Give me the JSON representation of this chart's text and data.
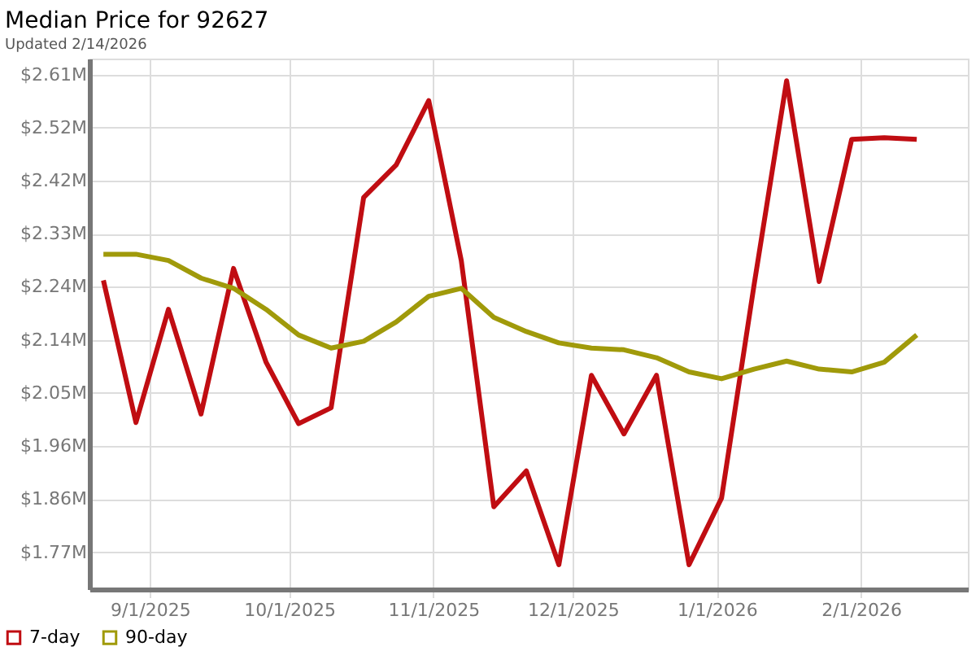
{
  "chart_data": {
    "type": "line",
    "title": "Median Price for 92627",
    "subtitle": "Updated 2/14/2026",
    "x": [
      "2025-08-22",
      "2025-08-29",
      "2025-09-05",
      "2025-09-12",
      "2025-09-19",
      "2025-09-26",
      "2025-10-03",
      "2025-10-10",
      "2025-10-17",
      "2025-10-24",
      "2025-10-31",
      "2025-11-07",
      "2025-11-14",
      "2025-11-21",
      "2025-11-28",
      "2025-12-05",
      "2025-12-12",
      "2025-12-19",
      "2025-12-26",
      "2026-01-02",
      "2026-01-09",
      "2026-01-16",
      "2026-01-23",
      "2026-01-30",
      "2026-02-06",
      "2026-02-13"
    ],
    "series": [
      {
        "name": "7-day",
        "color": "#c00d12",
        "values": [
          2.248,
          1.998,
          2.197,
          2.013,
          2.269,
          2.104,
          1.996,
          2.024,
          2.394,
          2.451,
          2.564,
          2.283,
          1.85,
          1.913,
          1.748,
          2.081,
          1.978,
          2.081,
          1.748,
          1.865,
          2.24,
          2.599,
          2.246,
          2.496,
          2.499,
          2.496
        ]
      },
      {
        "name": "90-day",
        "color": "#a09a0a",
        "values": [
          2.294,
          2.294,
          2.283,
          2.252,
          2.234,
          2.197,
          2.152,
          2.129,
          2.141,
          2.175,
          2.22,
          2.234,
          2.183,
          2.158,
          2.138,
          2.129,
          2.126,
          2.112,
          2.087,
          2.075,
          2.092,
          2.106,
          2.092,
          2.087,
          2.104,
          2.152
        ]
      }
    ],
    "xlim": [
      "2025-08-19",
      "2026-02-24"
    ],
    "xticks": [
      {
        "value": "2025-09-01",
        "label": "9/1/2025"
      },
      {
        "value": "2025-10-01",
        "label": "10/1/2025"
      },
      {
        "value": "2025-11-01",
        "label": "11/1/2025"
      },
      {
        "value": "2025-12-01",
        "label": "12/1/2025"
      },
      {
        "value": "2026-01-01",
        "label": "1/1/2026"
      },
      {
        "value": "2026-02-01",
        "label": "2/1/2026"
      }
    ],
    "ylim": [
      1.705,
      2.638
    ],
    "yticks": [
      {
        "value": 1.77,
        "label": "$1.77M"
      },
      {
        "value": 1.8633,
        "label": "$1.86M"
      },
      {
        "value": 1.9567,
        "label": "$1.96M"
      },
      {
        "value": 2.05,
        "label": "$2.05M"
      },
      {
        "value": 2.1433,
        "label": "$2.14M"
      },
      {
        "value": 2.2367,
        "label": "$2.24M"
      },
      {
        "value": 2.33,
        "label": "$2.33M"
      },
      {
        "value": 2.4233,
        "label": "$2.42M"
      },
      {
        "value": 2.5167,
        "label": "$2.52M"
      },
      {
        "value": 2.61,
        "label": "$2.61M"
      }
    ],
    "grid": true,
    "legend": "bottom left",
    "marker": "none",
    "line_style": "solid"
  }
}
